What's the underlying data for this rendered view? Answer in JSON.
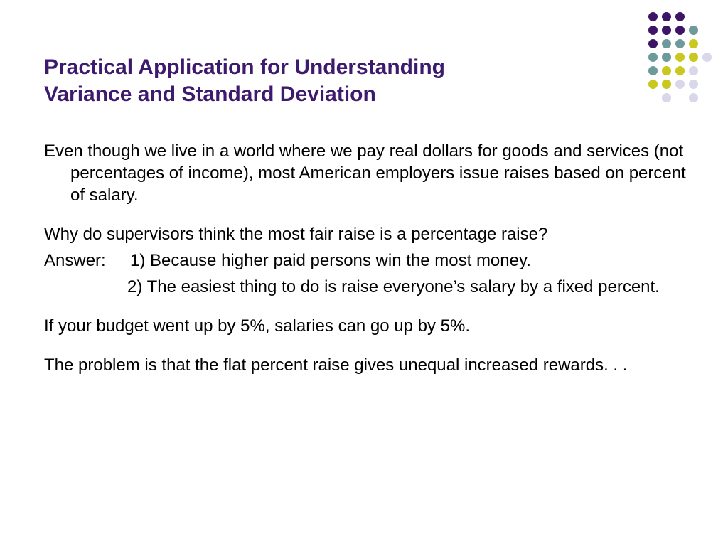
{
  "title": {
    "line1": "Practical Application for Understanding",
    "line2": "Variance and Standard Deviation"
  },
  "paragraphs": {
    "p1": "Even though we live in a world where we pay real dollars for goods and services (not percentages of income), most American employers issue raises based on percent of salary.",
    "question": "Why do supervisors think the most fair raise is a percentage raise?",
    "answer_label": "Answer:",
    "answer1": "1) Because higher paid persons win the most money.",
    "answer2": "2) The easiest thing to do is raise everyone’s salary by a fixed percent.",
    "p4": "If your budget went up by 5%, salaries can go up by 5%.",
    "p5": "The problem is that the flat percent raise gives unequal increased rewards. . ."
  },
  "decoration": {
    "dot_colors": {
      "purple": "#3d1466",
      "teal": "#6f9a9c",
      "yellow": "#c8c81e",
      "lavender": "#d8d8ea"
    }
  }
}
